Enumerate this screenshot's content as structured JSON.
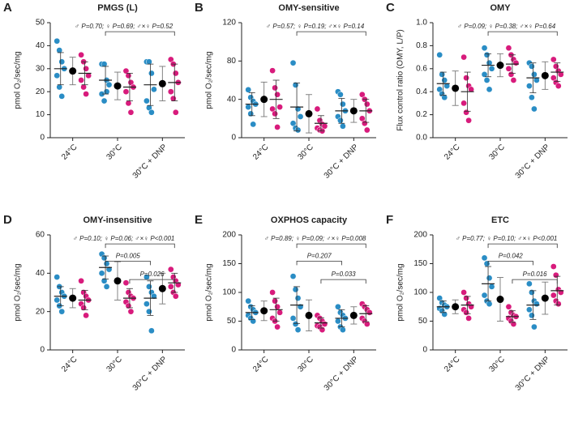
{
  "chart_data": [
    {
      "type": "strip",
      "panel": "A",
      "title": "PMGS (L)",
      "y_label": "pmol O₂/sec/mg",
      "categories": [
        "24°C",
        "30°C",
        "30°C + DNP"
      ],
      "ylim": [
        0,
        50
      ],
      "yticks": [
        0,
        10,
        20,
        30,
        40,
        50
      ],
      "series": [
        {
          "color": "#2a8dc5",
          "values": [
            [
              42,
              38,
              33,
              30,
              27,
              22,
              18
            ],
            [
              32,
              32,
              25,
              23,
              19,
              16,
              20
            ],
            [
              33,
              33,
              28,
              21,
              16,
              13,
              11
            ]
          ],
          "mean": [
            30,
            25,
            23
          ],
          "sd": [
            7,
            6,
            9
          ]
        },
        {
          "color": "#d81b7c",
          "values": [
            [
              36,
              33,
              30,
              27,
              25,
              22,
              19
            ],
            [
              29,
              27,
              24,
              22,
              20,
              15,
              11
            ],
            [
              34,
              32,
              28,
              24,
              20,
              17,
              11
            ]
          ],
          "mean": [
            28,
            22,
            24
          ],
          "sd": [
            5,
            6,
            8
          ]
        }
      ],
      "overall": {
        "color": "#000000",
        "mean": [
          29,
          22.5,
          23.5
        ],
        "sd": [
          6,
          6,
          7.5
        ]
      },
      "annotations": [
        "♂ P=0.70; ♀ P=0.69; ♂×♀ P=0.52"
      ]
    },
    {
      "type": "strip",
      "panel": "B",
      "title": "OMY-sensitive",
      "y_label": "pmol O₂/sec/mg",
      "categories": [
        "24°C",
        "30°C",
        "30°C + DNP"
      ],
      "ylim": [
        0,
        120
      ],
      "yticks": [
        0,
        40,
        80,
        120
      ],
      "series": [
        {
          "color": "#2a8dc5",
          "values": [
            [
              50,
              42,
              38,
              35,
              32,
              25,
              14
            ],
            [
              78,
              55,
              30,
              22,
              15,
              10,
              8
            ],
            [
              48,
              45,
              35,
              28,
              22,
              18,
              12
            ]
          ],
          "mean": [
            35,
            32,
            28
          ],
          "sd": [
            12,
            25,
            13
          ]
        },
        {
          "color": "#d81b7c",
          "values": [
            [
              70,
              52,
              45,
              32,
              30,
              25,
              11
            ],
            [
              30,
              18,
              14,
              12,
              10,
              8,
              7
            ],
            [
              45,
              40,
              35,
              28,
              20,
              15,
              8
            ]
          ],
          "mean": [
            40,
            15,
            28
          ],
          "sd": [
            20,
            8,
            12
          ]
        }
      ],
      "overall": {
        "color": "#000000",
        "mean": [
          40,
          25,
          28
        ],
        "sd": [
          18,
          20,
          12
        ]
      },
      "annotations": [
        "♂ P=0.57; ♀ P=0.19; ♂×♀ P=0.14"
      ]
    },
    {
      "type": "strip",
      "panel": "C",
      "title": "OMY",
      "y_label": "Flux control ratio (OMY, L/P)",
      "categories": [
        "24°C",
        "30°C",
        "30°C + DNP"
      ],
      "ylim": [
        0,
        1
      ],
      "yticks": [
        {
          "value": 0,
          "label": "0.0"
        },
        {
          "value": 0.2,
          "label": "0.2"
        },
        {
          "value": 0.4,
          "label": "0.4"
        },
        {
          "value": 0.6,
          "label": "0.6"
        },
        {
          "value": 0.8,
          "label": "0.8"
        },
        {
          "value": 1,
          "label": "1.0"
        }
      ],
      "series": [
        {
          "color": "#2a8dc5",
          "values": [
            [
              0.72,
              0.55,
              0.5,
              0.45,
              0.42,
              0.38,
              0.35
            ],
            [
              0.78,
              0.72,
              0.65,
              0.6,
              0.55,
              0.5,
              0.42
            ],
            [
              0.65,
              0.62,
              0.55,
              0.5,
              0.45,
              0.35,
              0.25
            ]
          ],
          "mean": [
            0.47,
            0.63,
            0.52
          ],
          "sd": [
            0.1,
            0.1,
            0.13
          ]
        },
        {
          "color": "#d81b7c",
          "values": [
            [
              0.7,
              0.52,
              0.45,
              0.42,
              0.3,
              0.22,
              0.15
            ],
            [
              0.78,
              0.72,
              0.68,
              0.65,
              0.6,
              0.55,
              0.5
            ],
            [
              0.68,
              0.62,
              0.58,
              0.55,
              0.52,
              0.48,
              0.45
            ]
          ],
          "mean": [
            0.4,
            0.64,
            0.57
          ],
          "sd": [
            0.17,
            0.08,
            0.08
          ]
        }
      ],
      "overall": {
        "color": "#000000",
        "mean": [
          0.43,
          0.63,
          0.54
        ],
        "sd": [
          0.15,
          0.1,
          0.12
        ]
      },
      "annotations": [
        "♂ P=0.09; ♀ P=0.38; ♂×♀ P=0.64"
      ]
    },
    {
      "type": "strip",
      "panel": "D",
      "title": "OMY-insensitive",
      "y_label": "pmol O₂/sec/mg",
      "categories": [
        "24°C",
        "30°C",
        "30°C + DNP"
      ],
      "ylim": [
        0,
        60
      ],
      "yticks": [
        0,
        20,
        40,
        60
      ],
      "series": [
        {
          "color": "#2a8dc5",
          "values": [
            [
              38,
              33,
              30,
              28,
              26,
              23,
              20
            ],
            [
              50,
              48,
              45,
              42,
              40,
              36,
              33
            ],
            [
              38,
              33,
              30,
              28,
              24,
              20,
              10
            ]
          ],
          "mean": [
            28,
            43,
            27
          ],
          "sd": [
            5,
            6,
            9
          ]
        },
        {
          "color": "#d81b7c",
          "values": [
            [
              36,
              30,
              28,
              26,
              24,
              22,
              18
            ],
            [
              35,
              30,
              28,
              27,
              25,
              23,
              20
            ],
            [
              42,
              38,
              36,
              34,
              33,
              30,
              28
            ]
          ],
          "mean": [
            26,
            27,
            35
          ],
          "sd": [
            5,
            5,
            5
          ]
        }
      ],
      "overall": {
        "color": "#000000",
        "mean": [
          27,
          36,
          32
        ],
        "sd": [
          5,
          10,
          8
        ]
      },
      "annotations": [
        "♂ P=0.10; ♀ P=0.06; ♂×♀ P<0.001",
        "P=0.005",
        "P=0.026"
      ]
    },
    {
      "type": "strip",
      "panel": "E",
      "title": "OXPHOS capacity",
      "y_label": "pmol O₂/sec/mg",
      "categories": [
        "24°C",
        "30°C",
        "30°C + DNP"
      ],
      "ylim": [
        0,
        200
      ],
      "yticks": [
        0,
        50,
        100,
        150,
        200
      ],
      "series": [
        {
          "color": "#2a8dc5",
          "values": [
            [
              85,
              75,
              70,
              65,
              60,
              55,
              50
            ],
            [
              128,
              105,
              90,
              75,
              55,
              45,
              35
            ],
            [
              75,
              65,
              60,
              55,
              50,
              40,
              35
            ]
          ],
          "mean": [
            65,
            78,
            55
          ],
          "sd": [
            12,
            32,
            15
          ]
        },
        {
          "color": "#d81b7c",
          "values": [
            [
              100,
              85,
              75,
              65,
              55,
              50,
              40
            ],
            [
              60,
              55,
              50,
              45,
              42,
              40,
              35
            ],
            [
              80,
              75,
              70,
              65,
              55,
              50,
              45
            ]
          ],
          "mean": [
            70,
            47,
            63
          ],
          "sd": [
            20,
            9,
            14
          ]
        }
      ],
      "overall": {
        "color": "#000000",
        "mean": [
          68,
          60,
          60
        ],
        "sd": [
          17,
          27,
          15
        ]
      },
      "annotations": [
        "♂ P=0.89; ♀ P=0.09; ♂×♀ P=0.008",
        "P=0.207",
        "P=0.033"
      ]
    },
    {
      "type": "strip",
      "panel": "F",
      "title": "ETC",
      "y_label": "pmol O₂/sec/mg",
      "categories": [
        "24°C",
        "30°C",
        "30°C + DNP"
      ],
      "ylim": [
        0,
        200
      ],
      "yticks": [
        0,
        50,
        100,
        150,
        200
      ],
      "series": [
        {
          "color": "#2a8dc5",
          "values": [
            [
              90,
              82,
              78,
              75,
              72,
              68,
              62
            ],
            [
              160,
              150,
              125,
              110,
              95,
              85,
              80
            ],
            [
              115,
              100,
              85,
              80,
              70,
              60,
              40
            ]
          ],
          "mean": [
            75,
            115,
            78
          ],
          "sd": [
            10,
            30,
            25
          ]
        },
        {
          "color": "#d81b7c",
          "values": [
            [
              100,
              90,
              80,
              75,
              70,
              65,
              55
            ],
            [
              75,
              65,
              60,
              58,
              55,
              50,
              45
            ],
            [
              145,
              130,
              105,
              100,
              95,
              85,
              80
            ]
          ],
          "mean": [
            78,
            58,
            103
          ],
          "sd": [
            15,
            10,
            25
          ]
        }
      ],
      "overall": {
        "color": "#000000",
        "mean": [
          75,
          88,
          90
        ],
        "sd": [
          12,
          38,
          28
        ]
      },
      "annotations": [
        "♂ P=0.77; ♀ P=0.10; ♂×♀ P<0.001",
        "P=0.042",
        "P=0.016"
      ]
    }
  ]
}
